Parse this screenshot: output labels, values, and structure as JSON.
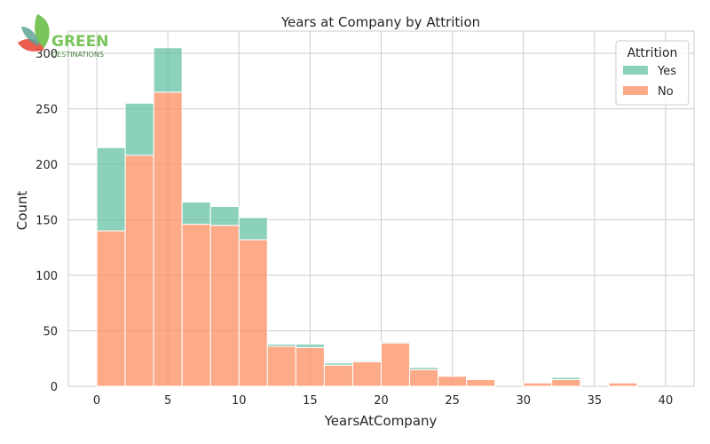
{
  "chart_data": {
    "type": "bar",
    "stacked": true,
    "title": "Years at Company by Attrition",
    "xlabel": "YearsAtCompany",
    "ylabel": "Count",
    "xlim": [
      -2,
      42
    ],
    "ylim": [
      0,
      320
    ],
    "x_ticks": [
      0,
      5,
      10,
      15,
      20,
      25,
      30,
      35,
      40
    ],
    "y_ticks": [
      0,
      50,
      100,
      150,
      200,
      250,
      300
    ],
    "grid": true,
    "bin_edges": [
      0,
      2,
      4,
      6,
      8,
      10,
      12,
      14,
      16,
      18,
      20,
      22,
      24,
      26,
      28,
      30,
      32,
      34,
      36,
      38,
      40
    ],
    "series": [
      {
        "name": "No",
        "color": "#fc8d62",
        "values": [
          140,
          208,
          265,
          146,
          145,
          132,
          36,
          35,
          19,
          22,
          39,
          15,
          9,
          6,
          0,
          3,
          6,
          0,
          3,
          0
        ]
      },
      {
        "name": "Yes",
        "color": "#66c2a5",
        "values": [
          75,
          47,
          40,
          20,
          17,
          20,
          2,
          3,
          2,
          1,
          1,
          2,
          0,
          0,
          0,
          0,
          2,
          0,
          0,
          0
        ]
      }
    ],
    "legend": {
      "title": "Attrition",
      "position": "top-right",
      "entries": [
        "Yes",
        "No"
      ]
    }
  },
  "logo": {
    "main": "GREEN",
    "sub": "DESTINATIONS"
  }
}
